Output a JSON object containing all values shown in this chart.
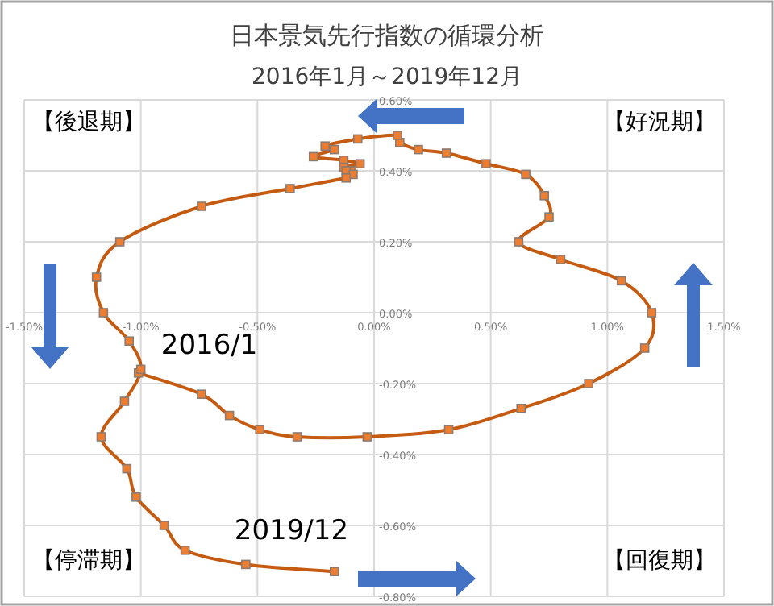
{
  "chart_data": {
    "type": "line",
    "title": "日本景気先行指数の循環分析",
    "subtitle": "2016年1月～2019年12月",
    "xlim": [
      -1.5,
      1.5
    ],
    "ylim": [
      -0.8,
      0.6
    ],
    "xticks": [
      {
        "value": -1.5,
        "label": "-1.50%"
      },
      {
        "value": -1.0,
        "label": "-1.00%"
      },
      {
        "value": -0.5,
        "label": "-0.50%"
      },
      {
        "value": 0,
        "label": "0.00%"
      },
      {
        "value": 0.5,
        "label": "0.50%"
      },
      {
        "value": 1.0,
        "label": "1.00%"
      },
      {
        "value": 1.5,
        "label": "1.50%"
      }
    ],
    "yticks": [
      {
        "value": 0.6,
        "label": "0.60%"
      },
      {
        "value": 0.4,
        "label": "0.40%"
      },
      {
        "value": 0.2,
        "label": "0.20%"
      },
      {
        "value": 0,
        "label": "0.00%"
      },
      {
        "value": -0.2,
        "label": "-0.20%"
      },
      {
        "value": -0.4,
        "label": "-0.40%"
      },
      {
        "value": -0.6,
        "label": "-0.60%"
      },
      {
        "value": -0.8,
        "label": "-0.80%"
      }
    ],
    "grid": true,
    "marker": "square",
    "line_style": "solid",
    "series": [
      {
        "color": "#c55a11",
        "x": [
          -1.01,
          -0.74,
          -0.62,
          -0.49,
          -0.33,
          -0.03,
          0.32,
          0.63,
          0.92,
          1.16,
          1.19,
          1.06,
          0.8,
          0.62,
          0.75,
          0.73,
          0.65,
          0.48,
          0.31,
          0.19,
          0.11,
          0.1,
          -0.07,
          -0.21,
          -0.17,
          -0.26,
          -0.13,
          -0.06,
          -0.13,
          -0.1,
          -0.12,
          -0.09,
          -0.12,
          -0.36,
          -0.74,
          -1.09,
          -1.19,
          -1.16,
          -1.05,
          -1.0,
          -1.07,
          -1.17,
          -1.06,
          -1.02,
          -0.9,
          -0.81,
          -0.55,
          -0.17
        ],
        "values": [
          -0.17,
          -0.23,
          -0.29,
          -0.33,
          -0.35,
          -0.35,
          -0.33,
          -0.27,
          -0.2,
          -0.1,
          0.0,
          0.09,
          0.15,
          0.2,
          0.27,
          0.33,
          0.39,
          0.42,
          0.45,
          0.46,
          0.48,
          0.5,
          0.49,
          0.47,
          0.46,
          0.44,
          0.43,
          0.42,
          0.41,
          0.4,
          0.4,
          0.39,
          0.38,
          0.35,
          0.3,
          0.2,
          0.1,
          0.0,
          -0.08,
          -0.16,
          -0.25,
          -0.35,
          -0.44,
          -0.52,
          -0.6,
          -0.67,
          -0.71,
          -0.73
        ]
      }
    ],
    "annotations": [
      "【後退期】",
      "【好況期】",
      "【停滞期】",
      "【回復期】",
      {
        "text": "2016/1",
        "x": -1.01,
        "y": -0.17
      },
      {
        "text": "2019/12",
        "x": -0.17,
        "y": -0.73
      }
    ]
  }
}
